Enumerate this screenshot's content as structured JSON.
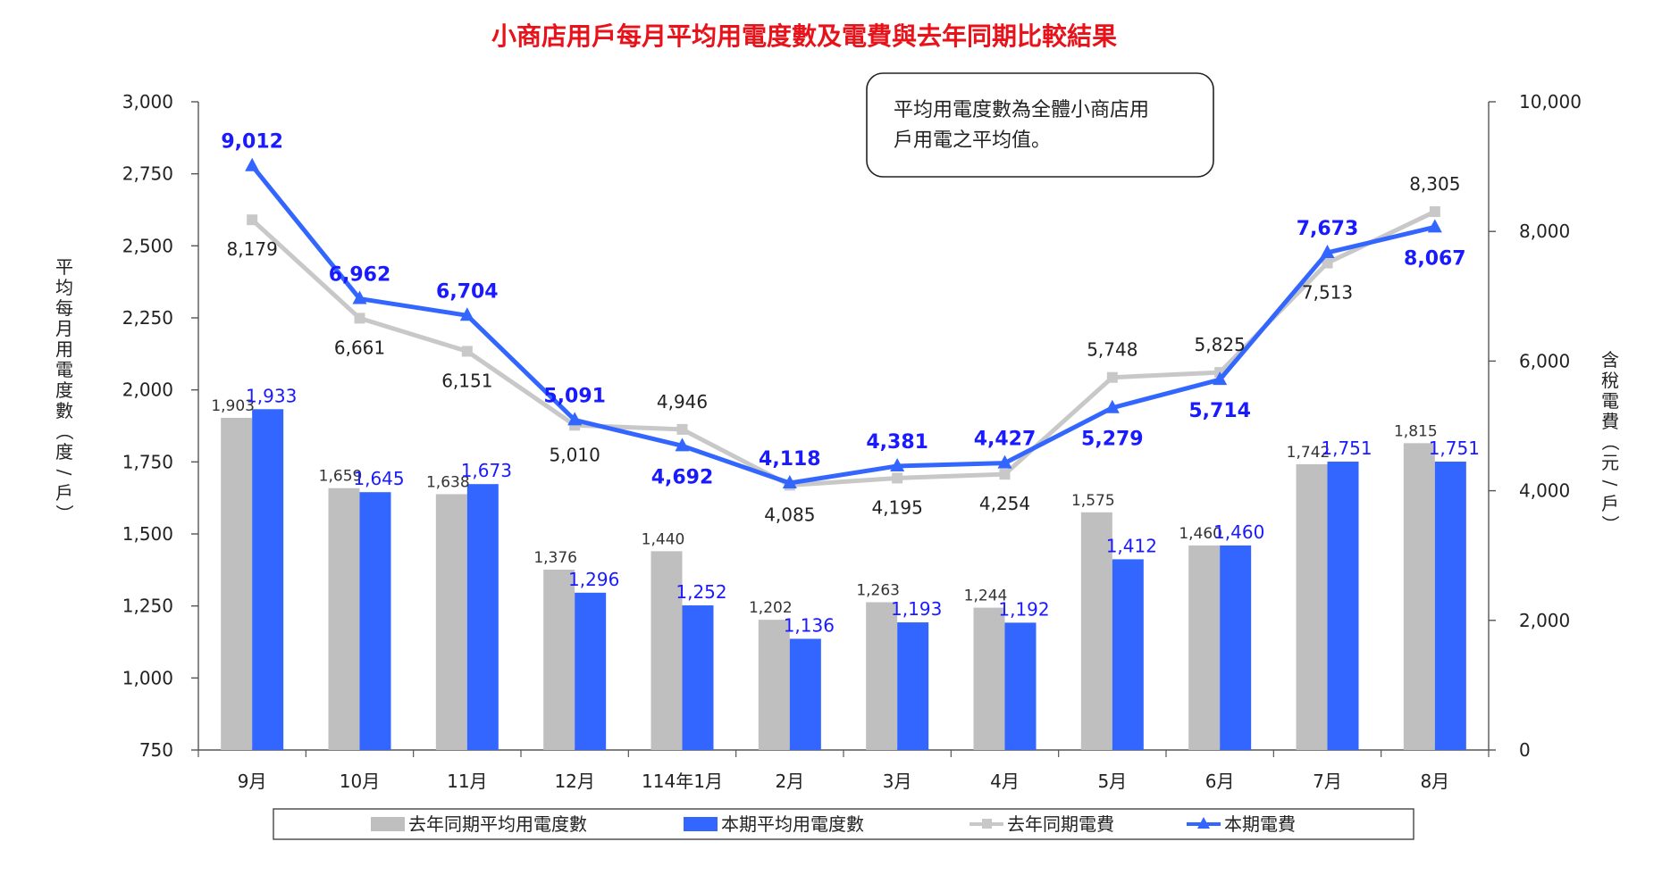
{
  "chart_data": {
    "type": "bar",
    "title": "小商店用戶每月平均用電度數及電費與去年同期比較結果",
    "categories": [
      "9月",
      "10月",
      "11月",
      "12月",
      "114年1月",
      "2月",
      "3月",
      "4月",
      "5月",
      "6月",
      "7月",
      "8月"
    ],
    "series": [
      {
        "name": "去年同期平均用電度數",
        "kind": "bar",
        "axis": "left",
        "color": "#bfbfbf",
        "values": [
          1903,
          1659,
          1638,
          1376,
          1440,
          1202,
          1263,
          1244,
          1575,
          1460,
          1742,
          1815
        ],
        "labels": [
          "1,903",
          "1,659",
          "1,638",
          "1,376",
          "1,440",
          "1,202",
          "1,263",
          "1,244",
          "1,575",
          "1,460",
          "1,742",
          "1,815"
        ]
      },
      {
        "name": "本期平均用電度數",
        "kind": "bar",
        "axis": "left",
        "color": "#3366ff",
        "values": [
          1933,
          1645,
          1673,
          1296,
          1252,
          1136,
          1193,
          1192,
          1412,
          1460,
          1751,
          1751
        ],
        "labels": [
          "1,933",
          "1,645",
          "1,673",
          "1,296",
          "1,252",
          "1,136",
          "1,193",
          "1,192",
          "1,412",
          "1,460",
          "1,751",
          "1,751"
        ]
      },
      {
        "name": "去年同期電費",
        "kind": "line",
        "axis": "right",
        "color": "#c8c8c8",
        "marker": "square",
        "values": [
          8179,
          6661,
          6151,
          5010,
          4946,
          4085,
          4195,
          4254,
          5748,
          5825,
          7513,
          8305
        ],
        "labels": [
          "8,179",
          "6,661",
          "6,151",
          "5,010",
          "4,946",
          "4,085",
          "4,195",
          "4,254",
          "5,748",
          "5,825",
          "7,513",
          "8,305"
        ]
      },
      {
        "name": "本期電費",
        "kind": "line",
        "axis": "right",
        "color": "#3366ff",
        "marker": "triangle",
        "values": [
          9012,
          6962,
          6704,
          5091,
          4692,
          4118,
          4381,
          4427,
          5279,
          5714,
          7673,
          8067
        ],
        "labels": [
          "9,012",
          "6,962",
          "6,704",
          "5,091",
          "4,692",
          "4,118",
          "4,381",
          "4,427",
          "5,279",
          "5,714",
          "7,673",
          "8,067"
        ]
      }
    ],
    "y_left": {
      "label": "平均每月用電度數（度/戶）",
      "min": 750,
      "max": 3000,
      "ticks": [
        750,
        1000,
        1250,
        1500,
        1750,
        2000,
        2250,
        2500,
        2750,
        3000
      ],
      "tick_labels": [
        "750",
        "1,000",
        "1,250",
        "1,500",
        "1,750",
        "2,000",
        "2,250",
        "2,500",
        "2,750",
        "3,000"
      ]
    },
    "y_right": {
      "label": "含稅電費（元/戶）",
      "min": 0,
      "max": 10000,
      "ticks": [
        0,
        2000,
        4000,
        6000,
        8000,
        10000
      ],
      "tick_labels": [
        "0",
        "2,000",
        "4,000",
        "6,000",
        "8,000",
        "10,000"
      ]
    },
    "grid": false,
    "legend_position": "bottom",
    "note": [
      "平均用電度數為全體小商店用",
      "戶用電之平均值。"
    ]
  }
}
